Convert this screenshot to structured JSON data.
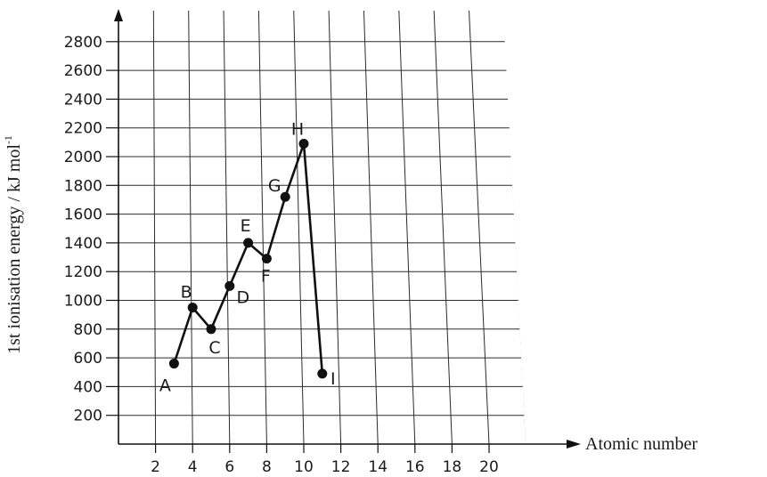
{
  "chart_data": {
    "type": "line",
    "title": "",
    "xlabel": "Atomic number",
    "ylabel": "1st ionisation energy / kJ mol",
    "ylabel_superscript": "-1",
    "x_ticks": [
      2,
      4,
      6,
      8,
      10,
      12,
      14,
      16,
      18,
      20
    ],
    "y_ticks": [
      200,
      400,
      600,
      800,
      1000,
      1200,
      1400,
      1600,
      1800,
      2000,
      2200,
      2400,
      2600,
      2800
    ],
    "xlim": [
      0,
      22
    ],
    "ylim": [
      0,
      3000
    ],
    "grid": true,
    "series": [
      {
        "points": [
          {
            "label": "A",
            "x": 3,
            "y": 560
          },
          {
            "label": "B",
            "x": 4,
            "y": 950
          },
          {
            "label": "C",
            "x": 5,
            "y": 800
          },
          {
            "label": "D",
            "x": 6,
            "y": 1100
          },
          {
            "label": "E",
            "x": 7,
            "y": 1400
          },
          {
            "label": "F",
            "x": 8,
            "y": 1290
          },
          {
            "label": "G",
            "x": 9,
            "y": 1720
          },
          {
            "label": "H",
            "x": 10,
            "y": 2090
          },
          {
            "label": "I",
            "x": 11,
            "y": 490
          }
        ]
      }
    ]
  }
}
